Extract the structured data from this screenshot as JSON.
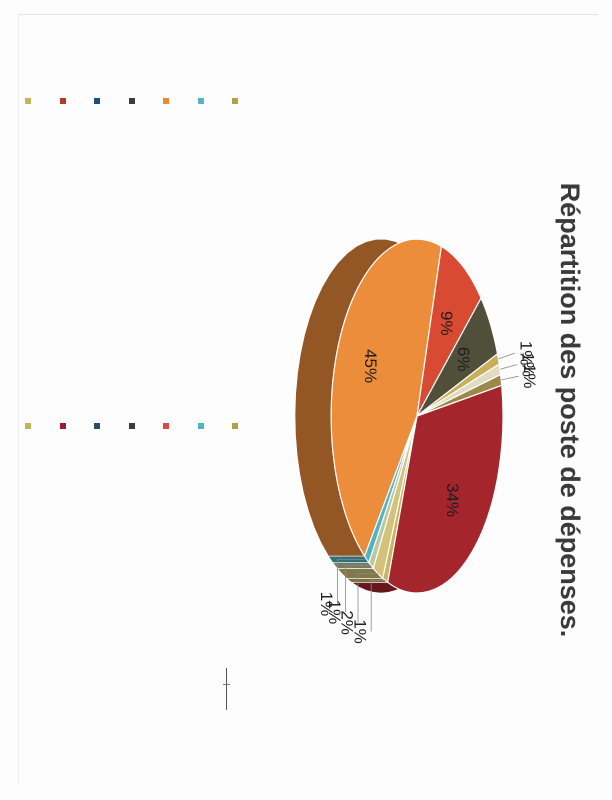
{
  "chart_data": {
    "type": "pie",
    "title": "Répartition des poste de dépenses.",
    "slices": [
      {
        "label": "34%",
        "value": 34,
        "color": "#a4252c"
      },
      {
        "label": "1%",
        "value": 1,
        "color": "#c9b466"
      },
      {
        "label": "2%",
        "value": 2,
        "color": "#d2c27a"
      },
      {
        "label": "1%",
        "value": 1,
        "color": "#bfc7a0"
      },
      {
        "label": "1%",
        "value": 1,
        "color": "#4fb3c6"
      },
      {
        "label": "45%",
        "value": 45,
        "color": "#ec8d3c"
      },
      {
        "label": "9%",
        "value": 9,
        "color": "#d84b32"
      },
      {
        "label": "6%",
        "value": 6,
        "color": "#50503a"
      },
      {
        "label": "1%",
        "value": 1,
        "color": "#c8b05a"
      },
      {
        "label": "1%",
        "value": 1,
        "color": "#e1dcc1"
      },
      {
        "label": "1%",
        "value": 1,
        "color": "#9a8a4a"
      }
    ],
    "legend_left": [
      "#c6b35a",
      "#b8392b",
      "#1f4f7f",
      "#3d3d3d",
      "#e98b2e",
      "#57b3c9",
      "#b0a24a"
    ],
    "legend_right": [
      "#c6b35a",
      "#9b1f28",
      "#24506e",
      "#3b3b3b",
      "#d94b3c",
      "#4fb4c4",
      "#b0a24a"
    ]
  }
}
